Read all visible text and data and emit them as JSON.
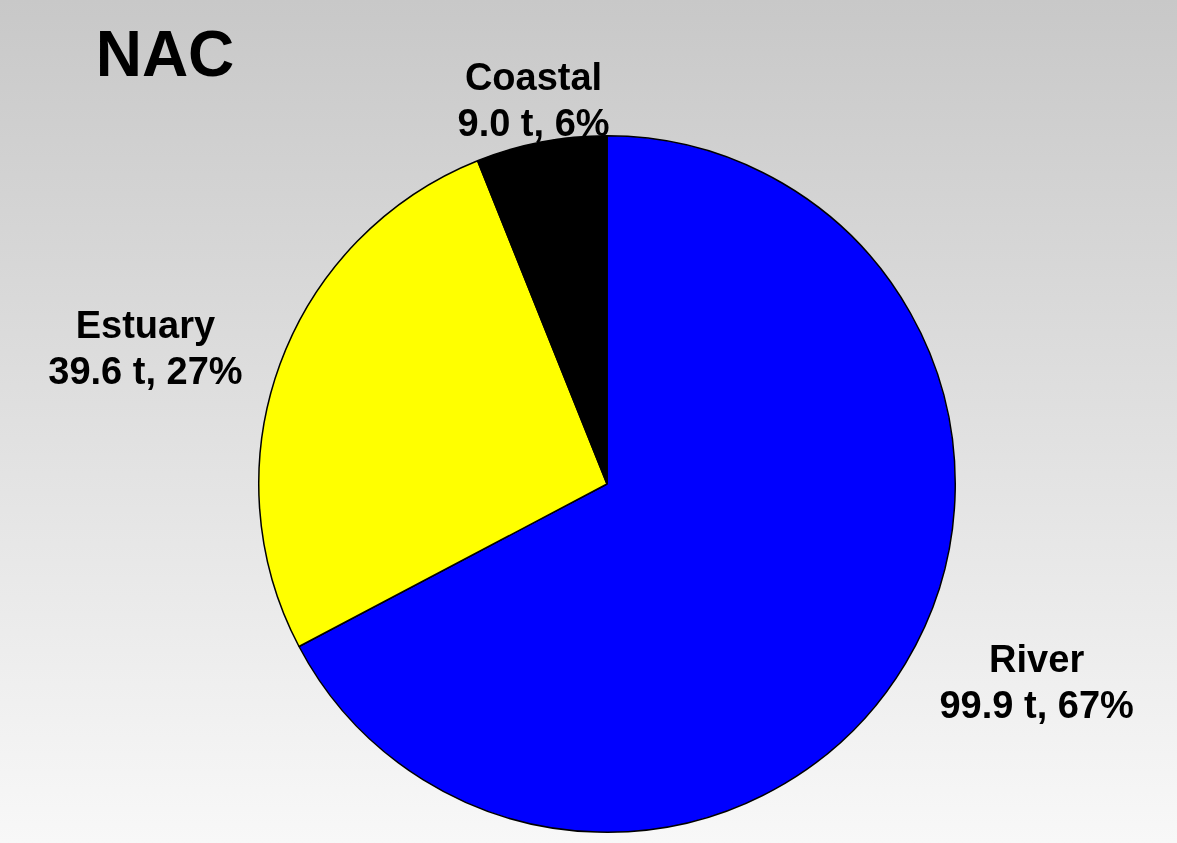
{
  "chart_data": {
    "type": "pie",
    "title": "NAC",
    "categories": [
      "River",
      "Estuary",
      "Coastal"
    ],
    "values": [
      99.9,
      39.6,
      9.0
    ],
    "value_labels": [
      "99.9 t, 67%",
      "39.6 t, 27%",
      "9.0 t, 6%"
    ],
    "colors": [
      "#0000ff",
      "#ffff00",
      "#000000"
    ],
    "legend": false
  }
}
